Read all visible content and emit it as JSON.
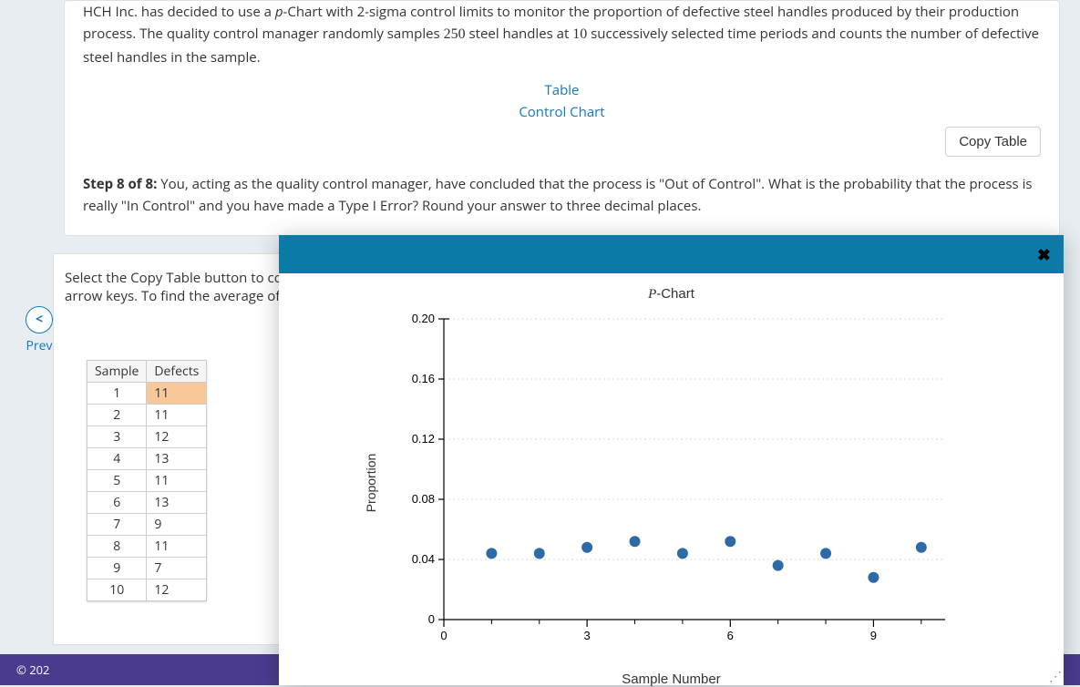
{
  "intro": {
    "pre": "HCH Inc. has decided to use a ",
    "p": "p",
    "mid1": "-Chart with 2-sigma control limits to monitor the proportion of defective steel handles produced by their production process. The quality control manager randomly samples ",
    "n": "250",
    "mid2": " steel handles at ",
    "k": "10",
    "post": " successively selected time periods and counts the number of defective steel handles in the sample."
  },
  "links": {
    "table": "Table",
    "chart": "Control Chart"
  },
  "copy_btn": "Copy Table",
  "step": {
    "label": "Step 8 of 8:",
    "text": " You, acting as the quality control manager, have concluded that the process is \"Out of Control\". What is the probability that the process is really \"In Control\" and you have made a Type I Error? Round your answer to three decimal places."
  },
  "hint": {
    "l1": "Select the Copy Table button to cop",
    "l2": "arrow keys. To find the average of t"
  },
  "table": {
    "headers": [
      "Sample",
      "Defects"
    ],
    "rows": [
      [
        "1",
        "11"
      ],
      [
        "2",
        "11"
      ],
      [
        "3",
        "12"
      ],
      [
        "4",
        "13"
      ],
      [
        "5",
        "11"
      ],
      [
        "6",
        "13"
      ],
      [
        "7",
        "9"
      ],
      [
        "8",
        "11"
      ],
      [
        "9",
        "7"
      ],
      [
        "10",
        "12"
      ]
    ],
    "highlight_row": 0
  },
  "prev": {
    "chev": "<",
    "label": "Prev"
  },
  "footer": "© 202",
  "modal": {
    "close": "✖",
    "title_p": "P",
    "title_rest": "-Chart",
    "chart": {
      "type": "scatter",
      "xlabel": "Sample Number",
      "ylabel": "Proportion",
      "xlim": [
        0,
        10.5
      ],
      "ylim": [
        0,
        0.2
      ],
      "xtick_vals": [
        0,
        3,
        6,
        9
      ],
      "xtick_labels": [
        "0",
        "3",
        "6",
        "9"
      ],
      "xtick_minor": [
        1,
        2,
        4,
        5,
        7,
        8,
        10
      ],
      "ytick_vals": [
        0,
        0.04,
        0.08,
        0.12,
        0.16,
        0.2
      ],
      "ytick_labels": [
        "0",
        "0.04",
        "0.08",
        "0.12",
        "0.16",
        "0.20"
      ],
      "grid_y_vals": [
        0.04,
        0.08,
        0.12,
        0.16,
        0.2
      ],
      "points_x": [
        1,
        2,
        3,
        4,
        5,
        6,
        7,
        8,
        9,
        10
      ],
      "points_y": [
        0.044,
        0.044,
        0.048,
        0.052,
        0.044,
        0.052,
        0.036,
        0.044,
        0.028,
        0.048
      ],
      "marker_color": "#2f6aa8",
      "marker_radius": 6,
      "grid_color": "#d9d9d9",
      "axis_color": "#000000",
      "tick_font_size": 13,
      "label_font_size": 14,
      "background": "#ffffff"
    },
    "grip": "⋰"
  }
}
